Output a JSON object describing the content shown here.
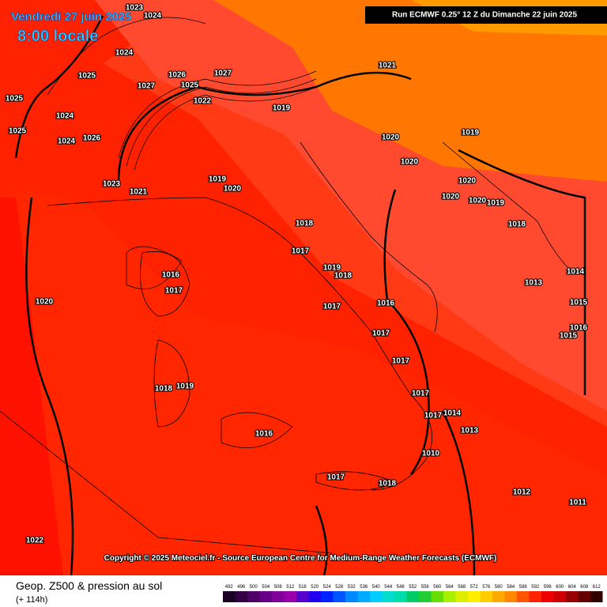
{
  "header": {
    "date": "Vendredi 27 juin 2025",
    "time": "8:00 locale",
    "run": "Run ECMWF 0.25° 12 Z du Dimanche 22 juin 2025"
  },
  "map": {
    "isobar_labels": [
      1023,
      1024,
      1024,
      1025,
      1025,
      1025,
      1024,
      1024,
      1026,
      1027,
      1026,
      1025,
      1027,
      1022,
      1019,
      1021,
      1023,
      1021,
      1019,
      1020,
      1018,
      1017,
      1019,
      1018,
      1017,
      1016,
      1016,
      1017,
      1020,
      1020,
      1020,
      1019,
      1020,
      1020,
      1020,
      1019,
      1018,
      1013,
      1014,
      1017,
      1017,
      1017,
      1017,
      1014,
      1013,
      1016,
      1018,
      1019,
      1017,
      1018,
      1010,
      1012,
      1011,
      1022,
      1015,
      1016,
      1015
    ]
  },
  "copyright": "Copyright © 2025 Meteociel.fr - Source European Centre for Medium-Range Weather Forecasts (ECMWF)",
  "footer": {
    "title": "Geop. Z500 & pression au sol",
    "lead": "(+ 114h)",
    "scale": [
      492,
      496,
      500,
      504,
      508,
      512,
      516,
      520,
      524,
      528,
      532,
      536,
      540,
      544,
      548,
      552,
      556,
      560,
      564,
      568,
      572,
      576,
      580,
      584,
      588,
      592,
      596,
      600,
      604,
      608,
      612
    ]
  }
}
